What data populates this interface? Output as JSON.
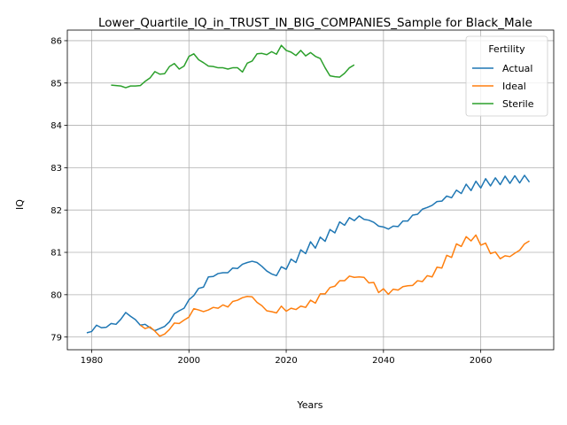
{
  "chart_data": {
    "type": "line",
    "title": "Lower_Quartile_IQ_in_TRUST_IN_BIG_COMPANIES_Sample for Black_Male",
    "xlabel": "Years",
    "ylabel": "IQ",
    "xlim": [
      1975,
      2075
    ],
    "ylim": [
      78.7,
      86.25
    ],
    "xticks": [
      1980,
      2000,
      2020,
      2040,
      2060
    ],
    "yticks": [
      79,
      80,
      81,
      82,
      83,
      84,
      85,
      86
    ],
    "grid": true,
    "legend": {
      "title": "Fertility",
      "position": "top-right"
    },
    "series": [
      {
        "name": "Actual",
        "color": "#1f77b4",
        "x": [
          1979,
          1980,
          1981,
          1982,
          1983,
          1984,
          1985,
          1986,
          1987,
          1988,
          1989,
          1990,
          1991,
          1992,
          1993,
          1994,
          1995,
          1996,
          1997,
          1998,
          1999,
          2000,
          2001,
          2002,
          2003,
          2004,
          2005,
          2006,
          2007,
          2008,
          2009,
          2010,
          2011,
          2012,
          2013,
          2014,
          2015,
          2016,
          2017,
          2018,
          2019,
          2020,
          2021,
          2022,
          2023,
          2024,
          2025,
          2026,
          2027,
          2028,
          2029,
          2030,
          2031,
          2032,
          2033,
          2034,
          2035,
          2036,
          2037,
          2038,
          2039,
          2040,
          2041,
          2042,
          2043,
          2044,
          2045,
          2046,
          2047,
          2048,
          2049,
          2050,
          2051,
          2052,
          2053,
          2054,
          2055,
          2056,
          2057,
          2058,
          2059,
          2060,
          2061,
          2062,
          2063,
          2064,
          2065,
          2066,
          2067,
          2068,
          2069,
          2070
        ],
        "y": [
          79.1,
          79.13,
          79.28,
          79.22,
          79.23,
          79.32,
          79.3,
          79.42,
          79.58,
          79.49,
          79.41,
          79.28,
          79.3,
          79.22,
          79.15,
          79.2,
          79.25,
          79.36,
          79.55,
          79.62,
          79.68,
          79.88,
          79.98,
          80.15,
          80.18,
          80.42,
          80.43,
          80.5,
          80.52,
          80.52,
          80.63,
          80.62,
          80.72,
          80.76,
          80.79,
          80.76,
          80.67,
          80.56,
          80.49,
          80.45,
          80.66,
          80.6,
          80.84,
          80.76,
          81.06,
          80.97,
          81.25,
          81.1,
          81.36,
          81.26,
          81.54,
          81.46,
          81.72,
          81.64,
          81.82,
          81.75,
          81.86,
          81.78,
          81.76,
          81.71,
          81.62,
          81.6,
          81.55,
          81.62,
          81.61,
          81.74,
          81.74,
          81.88,
          81.9,
          82.02,
          82.06,
          82.11,
          82.2,
          82.21,
          82.33,
          82.29,
          82.47,
          82.39,
          82.61,
          82.46,
          82.68,
          82.52,
          82.74,
          82.57,
          82.76,
          82.6,
          82.8,
          82.63,
          82.81,
          82.64,
          82.82,
          82.66
        ]
      },
      {
        "name": "Ideal",
        "color": "#ff7f0e",
        "x": [
          1990,
          1991,
          1992,
          1993,
          1994,
          1995,
          1996,
          1997,
          1998,
          1999,
          2000,
          2001,
          2002,
          2003,
          2004,
          2005,
          2006,
          2007,
          2008,
          2009,
          2010,
          2011,
          2012,
          2013,
          2014,
          2015,
          2016,
          2017,
          2018,
          2019,
          2020,
          2021,
          2022,
          2023,
          2024,
          2025,
          2026,
          2027,
          2028,
          2029,
          2030,
          2031,
          2032,
          2033,
          2034,
          2035,
          2036,
          2037,
          2038,
          2039,
          2040,
          2041,
          2042,
          2043,
          2044,
          2045,
          2046,
          2047,
          2048,
          2049,
          2050,
          2051,
          2052,
          2053,
          2054,
          2055,
          2056,
          2057,
          2058,
          2059,
          2060,
          2061,
          2062,
          2063,
          2064,
          2065,
          2066,
          2067,
          2068,
          2069,
          2070
        ],
        "y": [
          79.28,
          79.2,
          79.24,
          79.14,
          79.02,
          79.07,
          79.18,
          79.33,
          79.32,
          79.4,
          79.47,
          79.67,
          79.64,
          79.6,
          79.64,
          79.7,
          79.68,
          79.76,
          79.71,
          79.84,
          79.87,
          79.93,
          79.96,
          79.95,
          79.82,
          79.74,
          79.62,
          79.6,
          79.57,
          79.73,
          79.61,
          79.68,
          79.65,
          79.73,
          79.7,
          79.87,
          79.8,
          80.02,
          80.02,
          80.17,
          80.2,
          80.33,
          80.33,
          80.44,
          80.41,
          80.42,
          80.41,
          80.28,
          80.29,
          80.05,
          80.14,
          80.01,
          80.13,
          80.11,
          80.19,
          80.21,
          80.22,
          80.33,
          80.31,
          80.45,
          80.42,
          80.65,
          80.63,
          80.93,
          80.88,
          81.2,
          81.14,
          81.37,
          81.27,
          81.41,
          81.17,
          81.22,
          80.97,
          81.01,
          80.85,
          80.92,
          80.9,
          80.98,
          81.05,
          81.2,
          81.27
        ]
      },
      {
        "name": "Sterile",
        "color": "#2ca02c",
        "x": [
          1984,
          1985,
          1986,
          1987,
          1988,
          1989,
          1990,
          1991,
          1992,
          1993,
          1994,
          1995,
          1996,
          1997,
          1998,
          1999,
          2000,
          2001,
          2002,
          2003,
          2004,
          2005,
          2006,
          2007,
          2008,
          2009,
          2010,
          2011,
          2012,
          2013,
          2014,
          2015,
          2016,
          2017,
          2018,
          2019,
          2020,
          2021,
          2022,
          2023,
          2024,
          2025,
          2026,
          2027,
          2028,
          2029,
          2030,
          2031,
          2032,
          2033,
          2034
        ],
        "y": [
          84.95,
          84.94,
          84.93,
          84.89,
          84.93,
          84.93,
          84.94,
          85.04,
          85.12,
          85.27,
          85.21,
          85.22,
          85.39,
          85.46,
          85.33,
          85.4,
          85.63,
          85.69,
          85.55,
          85.48,
          85.4,
          85.39,
          85.36,
          85.36,
          85.33,
          85.36,
          85.36,
          85.26,
          85.47,
          85.52,
          85.69,
          85.7,
          85.67,
          85.74,
          85.68,
          85.89,
          85.77,
          85.73,
          85.65,
          85.77,
          85.64,
          85.72,
          85.63,
          85.58,
          85.36,
          85.17,
          85.15,
          85.14,
          85.23,
          85.36,
          85.43
        ]
      }
    ]
  }
}
